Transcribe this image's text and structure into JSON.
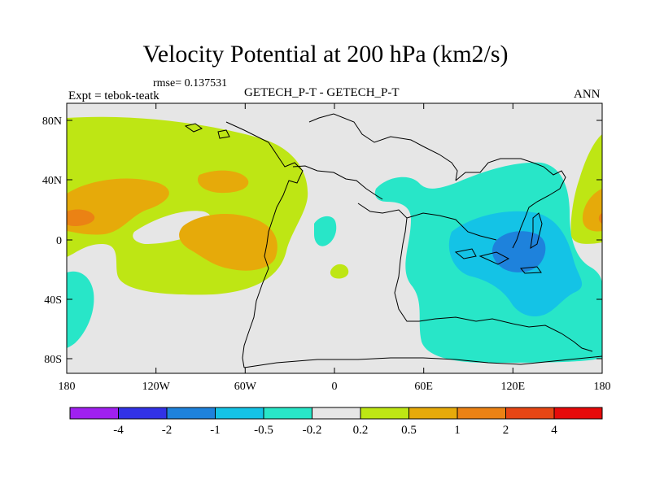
{
  "title": "Velocity Potential at 200 hPa (km2/s)",
  "rmse_label": "rmse= 0.137531",
  "expt_label": "Expt = tebok-teatk",
  "center_label": "GETECH_P-T - GETECH_P-T",
  "season_label": "ANN",
  "x_ticks": [
    "180",
    "120W",
    "60W",
    "0",
    "60E",
    "120E",
    "180"
  ],
  "y_ticks": [
    "80N",
    "40N",
    "0",
    "40S",
    "80S"
  ],
  "colorbar": {
    "colors": [
      "#a020f0",
      "#3232e6",
      "#1e82dc",
      "#14c3e6",
      "#28e6c8",
      "#e6e6e6",
      "#bee614",
      "#e6aa0a",
      "#eb8214",
      "#e64614",
      "#e60a0a"
    ],
    "labels": [
      "-4",
      "-2",
      "-1",
      "-0.5",
      "-0.2",
      "0.2",
      "0.5",
      "1",
      "2",
      "4"
    ]
  },
  "colors": {
    "background": "#e6e6e6",
    "outline": "#000000"
  }
}
